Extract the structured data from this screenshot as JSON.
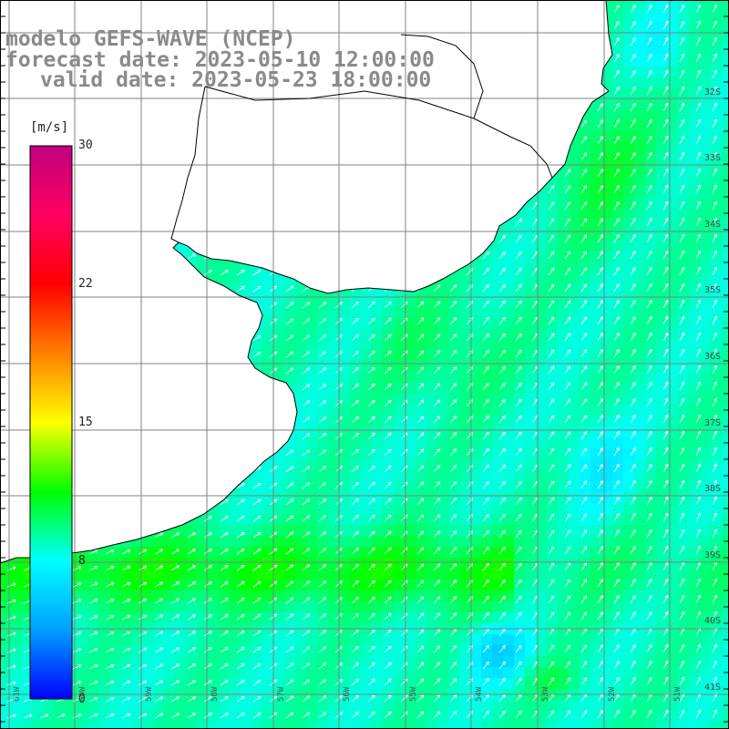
{
  "title": {
    "line1": "modelo GEFS-WAVE (NCEP)",
    "line2": "forecast date: 2023-05-10 12:00:00",
    "line3": "valid date: 2023-05-23 18:00:00"
  },
  "colorbar": {
    "unit": "[m/s]",
    "min": 0,
    "max": 30,
    "ticks": [
      {
        "value": 30,
        "label": "30"
      },
      {
        "value": 22,
        "label": "22"
      },
      {
        "value": 15,
        "label": "15"
      },
      {
        "value": 8,
        "label": "8"
      },
      {
        "value": 0,
        "label": "0"
      }
    ],
    "colors": [
      "#0000ff",
      "#00a0ff",
      "#00ffff",
      "#00ff00",
      "#ffff00",
      "#ff7f00",
      "#ff0000",
      "#ff0060",
      "#c0007f"
    ]
  },
  "lat_labels": [
    "32S",
    "33S",
    "34S",
    "35S",
    "36S",
    "37S",
    "38S",
    "39S",
    "40S",
    "41S"
  ],
  "lon_labels": [
    "61W",
    "60W",
    "59W",
    "58W",
    "57W",
    "56W",
    "55W",
    "54W",
    "53W",
    "52W",
    "51W"
  ],
  "colors": {
    "land": "#ffffff",
    "coast": "#000000",
    "grid": "#808080",
    "arrow": "#ffffff",
    "title": "#8a8a8a"
  }
}
